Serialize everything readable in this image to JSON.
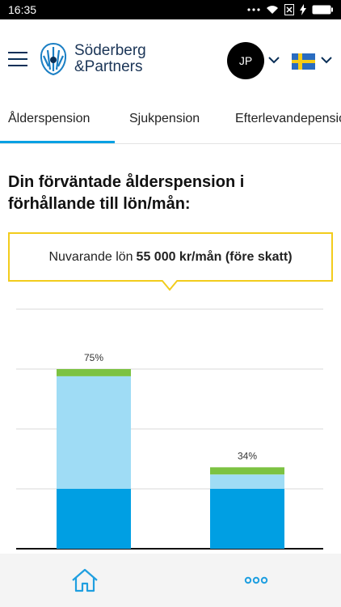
{
  "status_bar": {
    "time": "16:35",
    "icons": [
      "dots-icon",
      "wifi-icon",
      "sim-icon",
      "bolt-icon",
      "battery-icon"
    ]
  },
  "header": {
    "logo_line1": "Söderberg",
    "logo_line2": "&Partners",
    "avatar_initials": "JP",
    "flag": "sweden-flag-icon"
  },
  "tabs": [
    {
      "label": "Ålderspension",
      "active": true
    },
    {
      "label": "Sjukpension",
      "active": false
    },
    {
      "label": "Efterlevandepension",
      "active": false
    }
  ],
  "main": {
    "heading": "Din förväntade ålderspension i förhållande till lön/mån:",
    "callout_prefix": "Nuvarande lön",
    "callout_value": "55 000 kr/mån (före skatt)"
  },
  "chart_data": {
    "type": "bar",
    "stacked": true,
    "categories": [
      "",
      ""
    ],
    "ylim": [
      0,
      100
    ],
    "grid": true,
    "data_labels": [
      "75%",
      "34%"
    ],
    "series": [
      {
        "color": "#009fe3",
        "values": [
          25,
          25
        ]
      },
      {
        "color": "#9fdcf5",
        "values": [
          47,
          6
        ]
      },
      {
        "color": "#7cc242",
        "values": [
          3,
          3
        ]
      }
    ]
  },
  "bottom_nav": {
    "home_icon": "home-icon",
    "more_icon": "more-icon"
  },
  "colors": {
    "brand_dark": "#0a2f57",
    "accent": "#00a0e3",
    "callout_border": "#f2cc1c"
  }
}
